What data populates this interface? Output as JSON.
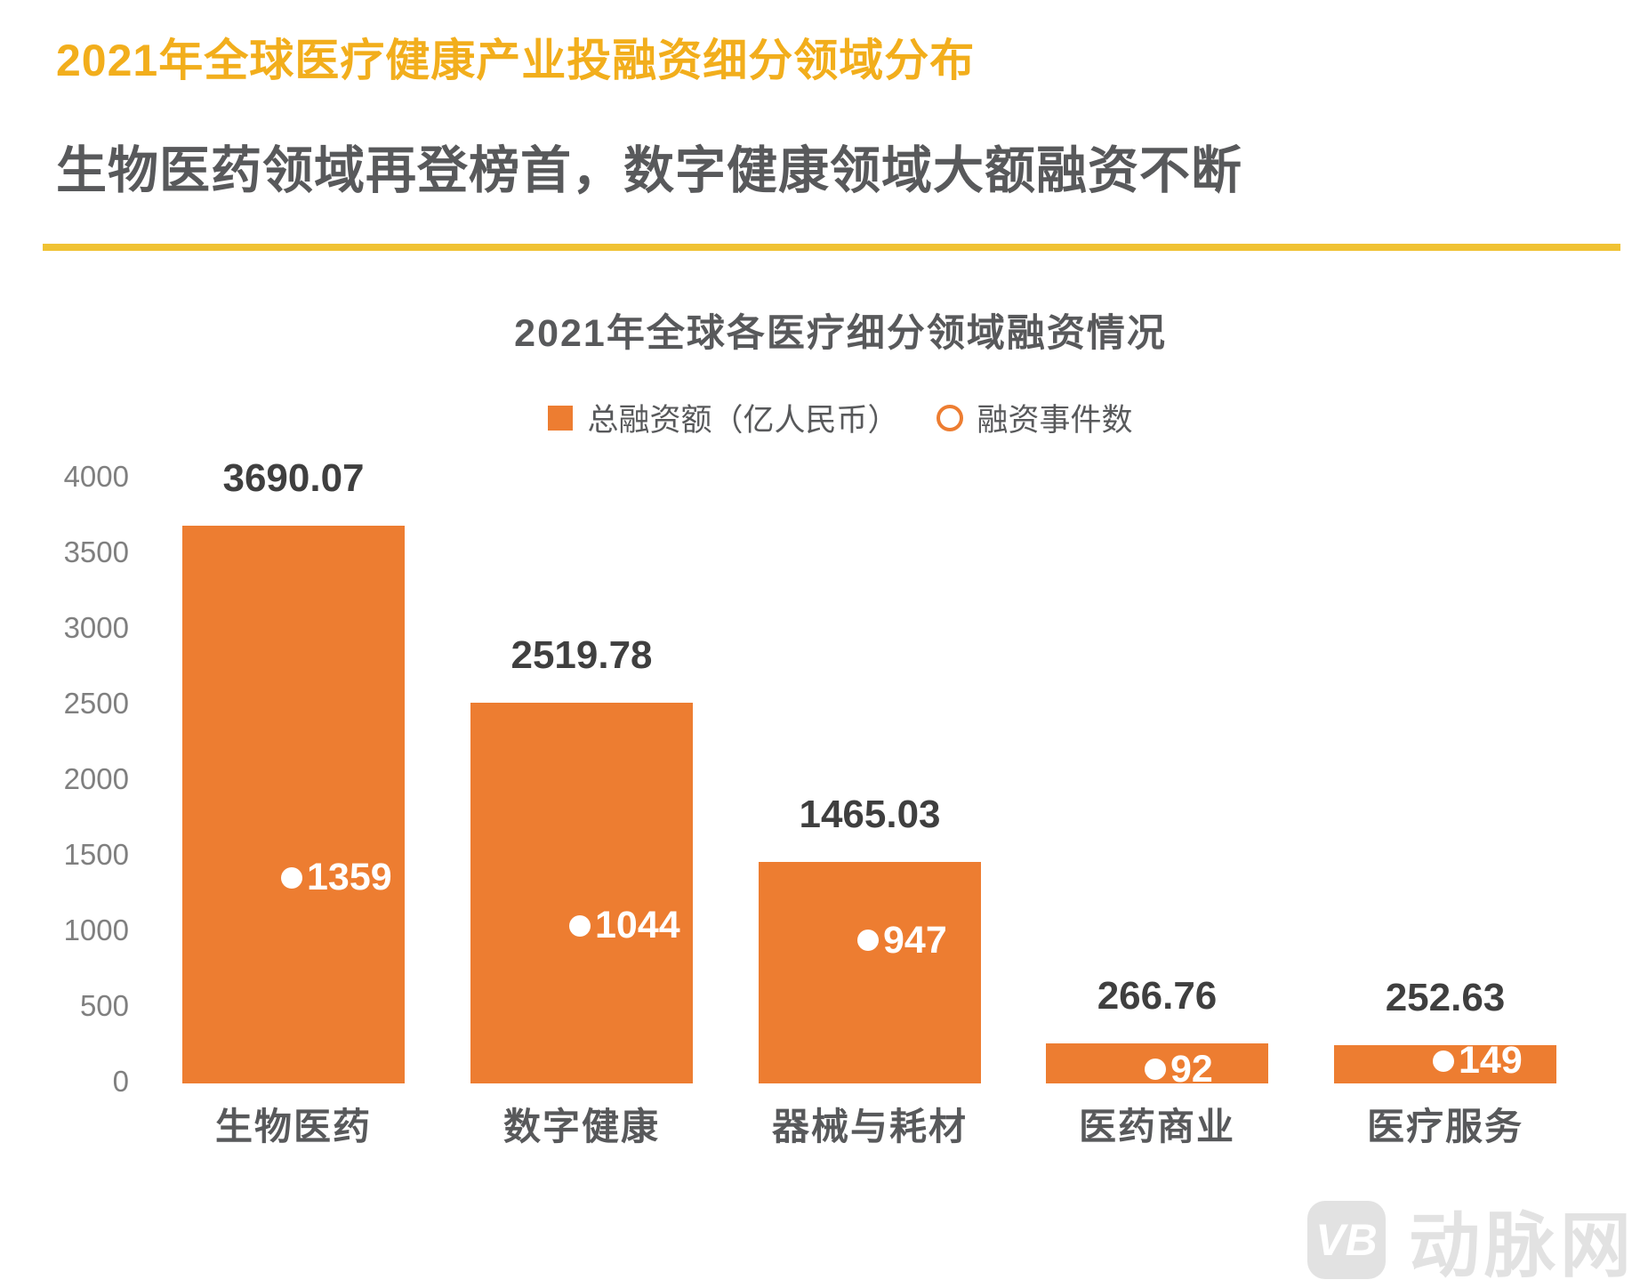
{
  "page": {
    "title": "2021年全球医疗健康产业投融资细分领域分布",
    "subtitle": "生物医药领域再登榜首，数字健康领域大额融资不断",
    "watermark": {
      "logo_text": "VB",
      "brand": "动脉网"
    }
  },
  "colors": {
    "gold": "#F2AE1C",
    "divider": "#F0C233",
    "orange": "#ED7D31",
    "dark": "#58595B",
    "axis": "#7F7F7F",
    "value": "#3F3F3F",
    "wm": "#E2E2E2"
  },
  "chart_data": {
    "type": "bar",
    "title": "2021年全球各医疗细分领域融资情况",
    "legend": [
      {
        "label": "总融资额（亿人民币）",
        "marker": "square"
      },
      {
        "label": "融资事件数",
        "marker": "circle"
      }
    ],
    "legend_position": "top",
    "grid": false,
    "categories": [
      "生物医药",
      "数字健康",
      "器械与耗材",
      "医药商业",
      "医疗服务"
    ],
    "series": [
      {
        "name": "总融资额（亿人民币）",
        "type": "bar",
        "values": [
          3690.07,
          2519.78,
          1465.03,
          266.76,
          252.63
        ]
      },
      {
        "name": "融资事件数",
        "type": "scatter",
        "values": [
          1359,
          1044,
          947,
          92,
          149
        ]
      }
    ],
    "ylim": [
      0,
      4000
    ],
    "ytick_step": 500
  }
}
